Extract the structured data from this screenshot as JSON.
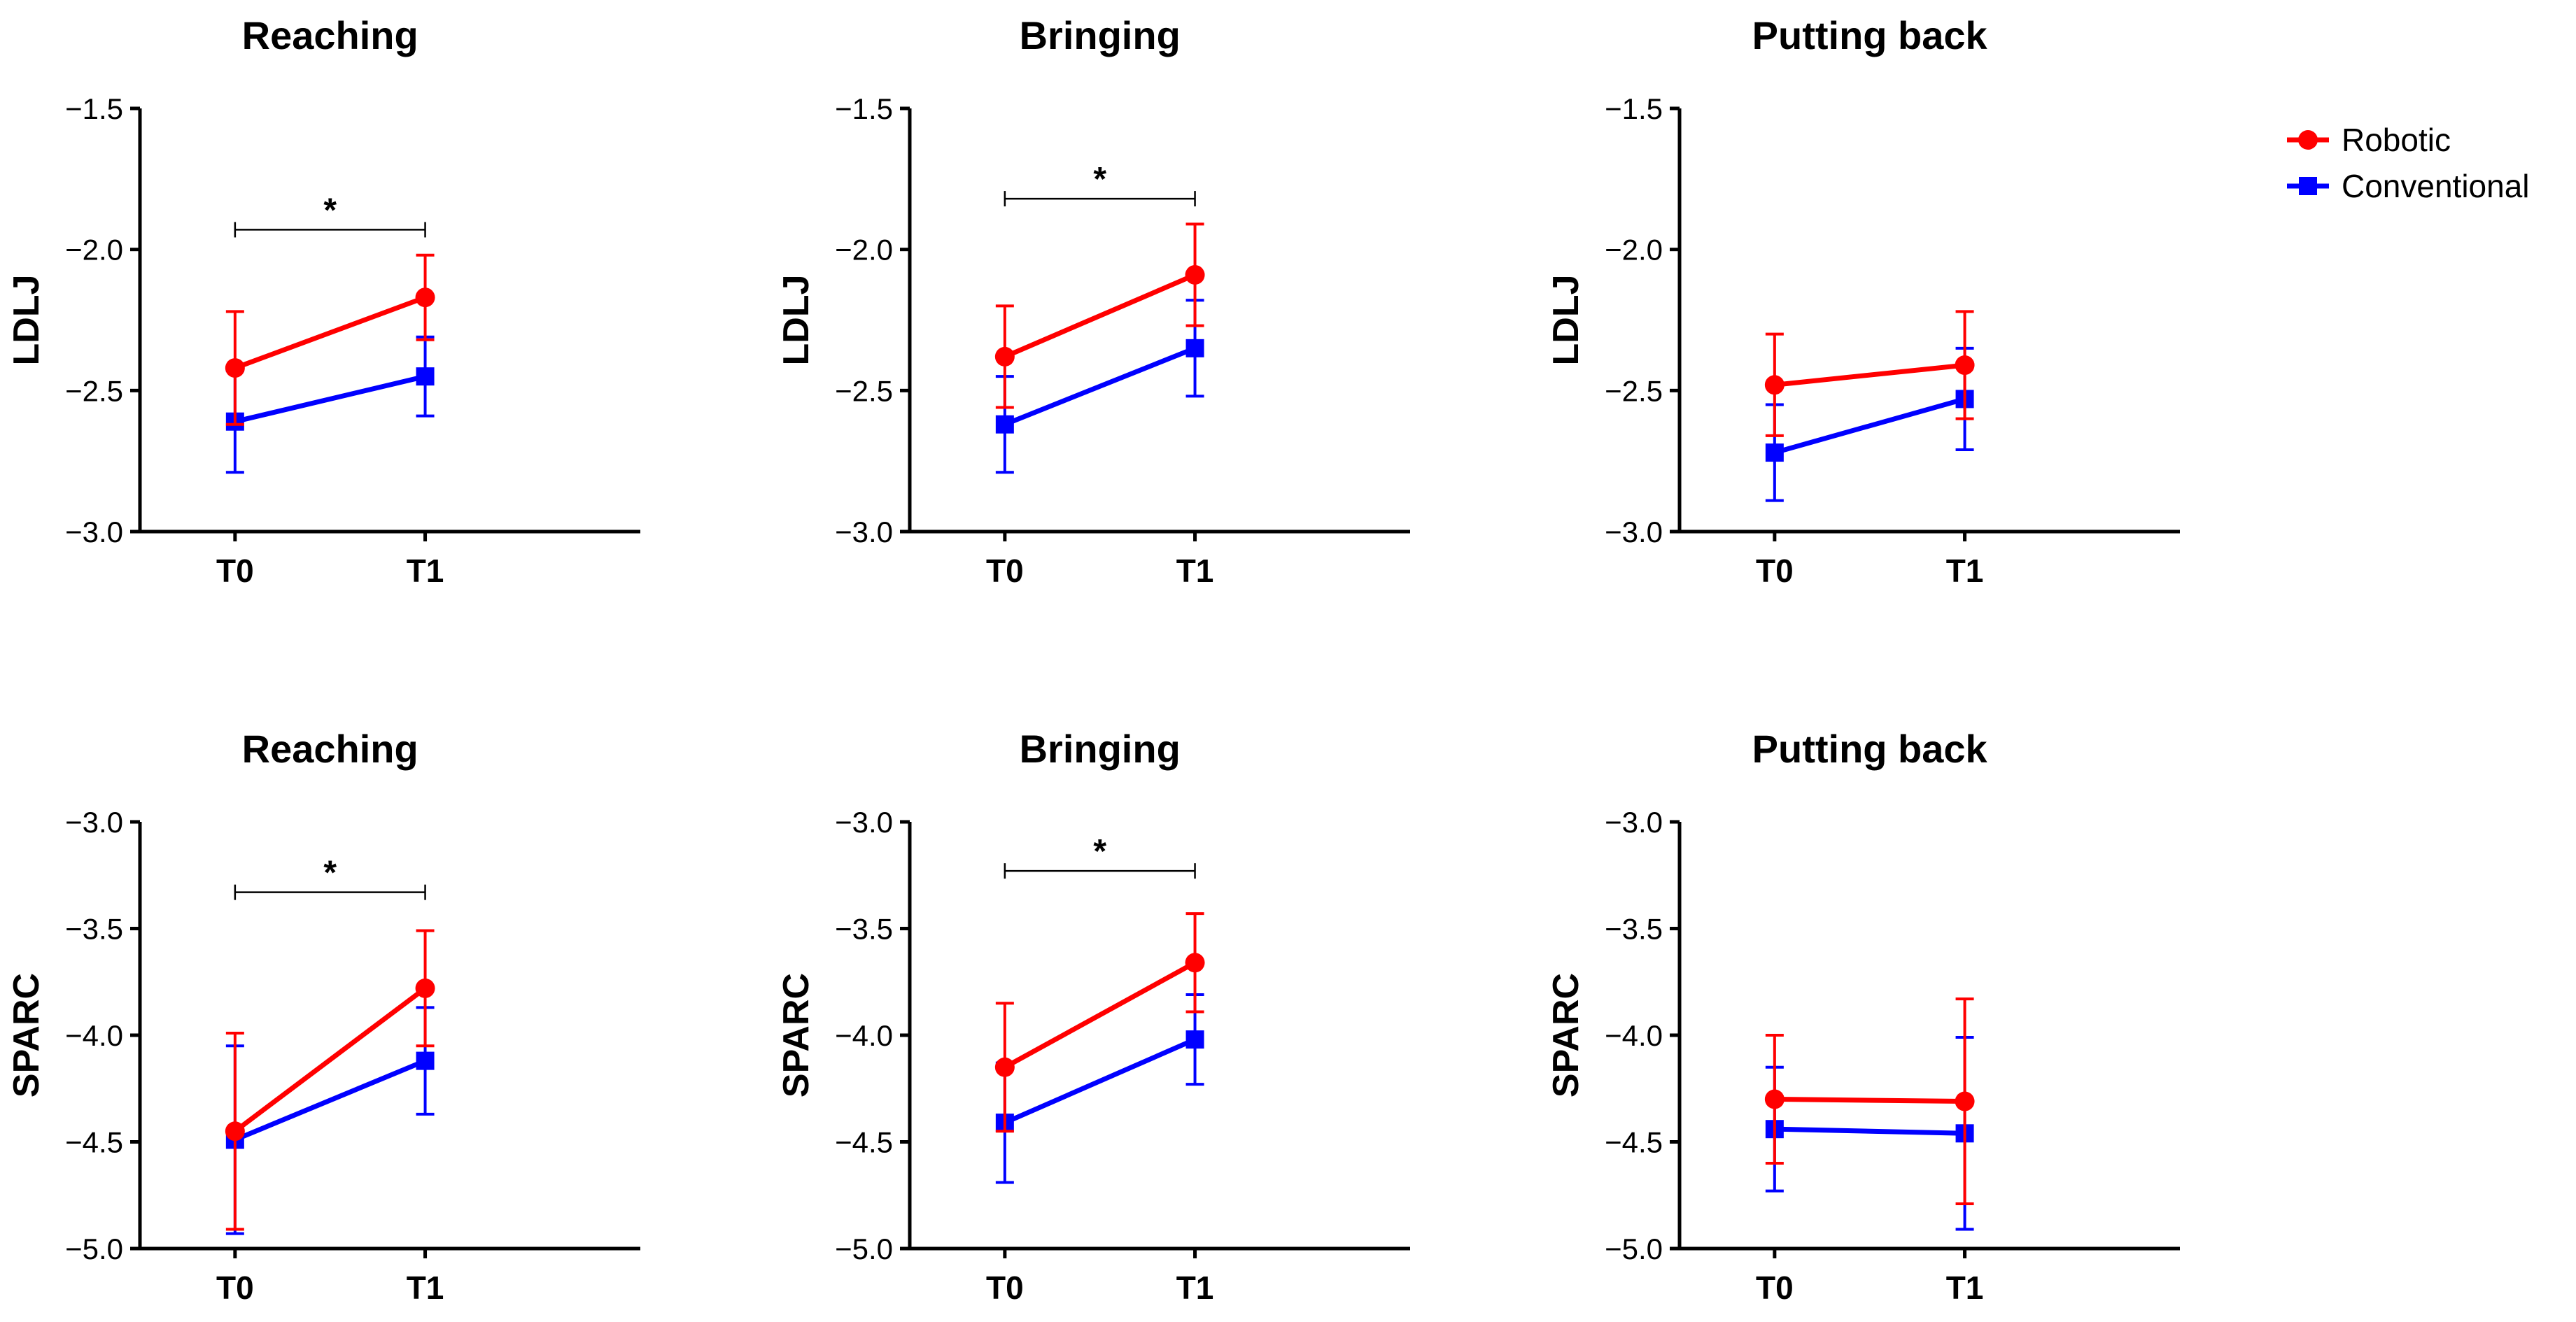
{
  "legend": [
    {
      "name": "Robotic",
      "color": "#ff0000",
      "marker": "circle"
    },
    {
      "name": "Conventional",
      "color": "#0000ff",
      "marker": "square"
    }
  ],
  "chart_data": [
    {
      "type": "line",
      "title": "Reaching",
      "ylabel": "LDLJ",
      "xlabel": "",
      "categories": [
        "T0",
        "T1"
      ],
      "ylim": [
        -3.0,
        -1.5
      ],
      "yticks": [
        -1.5,
        -2.0,
        -2.5,
        -3.0
      ],
      "ytick_labels": [
        "−1.5",
        "−2.0",
        "−2.5",
        "−3.0"
      ],
      "series": [
        {
          "name": "Robotic",
          "values": [
            -2.42,
            -2.17
          ],
          "err": [
            0.2,
            0.15
          ]
        },
        {
          "name": "Conventional",
          "values": [
            -2.61,
            -2.45
          ],
          "err": [
            0.18,
            0.14
          ]
        }
      ],
      "significance": {
        "from": "T0",
        "to": "T1",
        "y": -1.93,
        "label": "*"
      }
    },
    {
      "type": "line",
      "title": "Bringing",
      "ylabel": "LDLJ",
      "xlabel": "",
      "categories": [
        "T0",
        "T1"
      ],
      "ylim": [
        -3.0,
        -1.5
      ],
      "yticks": [
        -1.5,
        -2.0,
        -2.5,
        -3.0
      ],
      "ytick_labels": [
        "−1.5",
        "−2.0",
        "−2.5",
        "−3.0"
      ],
      "series": [
        {
          "name": "Robotic",
          "values": [
            -2.38,
            -2.09
          ],
          "err": [
            0.18,
            0.18
          ]
        },
        {
          "name": "Conventional",
          "values": [
            -2.62,
            -2.35
          ],
          "err": [
            0.17,
            0.17
          ]
        }
      ],
      "significance": {
        "from": "T0",
        "to": "T1",
        "y": -1.82,
        "label": "*"
      }
    },
    {
      "type": "line",
      "title": "Putting back",
      "ylabel": "LDLJ",
      "xlabel": "",
      "categories": [
        "T0",
        "T1"
      ],
      "ylim": [
        -3.0,
        -1.5
      ],
      "yticks": [
        -1.5,
        -2.0,
        -2.5,
        -3.0
      ],
      "ytick_labels": [
        "−1.5",
        "−2.0",
        "−2.5",
        "−3.0"
      ],
      "series": [
        {
          "name": "Robotic",
          "values": [
            -2.48,
            -2.41
          ],
          "err": [
            0.18,
            0.19
          ]
        },
        {
          "name": "Conventional",
          "values": [
            -2.72,
            -2.53
          ],
          "err": [
            0.17,
            0.18
          ]
        }
      ],
      "significance": null
    },
    {
      "type": "line",
      "title": "Reaching",
      "ylabel": "SPARC",
      "xlabel": "",
      "categories": [
        "T0",
        "T1"
      ],
      "ylim": [
        -5.0,
        -3.0
      ],
      "yticks": [
        -3.0,
        -3.5,
        -4.0,
        -4.5,
        -5.0
      ],
      "ytick_labels": [
        "−3.0",
        "−3.5",
        "−4.0",
        "−4.5",
        "−5.0"
      ],
      "series": [
        {
          "name": "Robotic",
          "values": [
            -4.45,
            -3.78
          ],
          "err": [
            0.46,
            0.27
          ]
        },
        {
          "name": "Conventional",
          "values": [
            -4.49,
            -4.12
          ],
          "err": [
            0.44,
            0.25
          ]
        }
      ],
      "significance": {
        "from": "T0",
        "to": "T1",
        "y": -3.33,
        "label": "*"
      }
    },
    {
      "type": "line",
      "title": "Bringing",
      "ylabel": "SPARC",
      "xlabel": "",
      "categories": [
        "T0",
        "T1"
      ],
      "ylim": [
        -5.0,
        -3.0
      ],
      "yticks": [
        -3.0,
        -3.5,
        -4.0,
        -4.5,
        -5.0
      ],
      "ytick_labels": [
        "−3.0",
        "−3.5",
        "−4.0",
        "−4.5",
        "−5.0"
      ],
      "series": [
        {
          "name": "Robotic",
          "values": [
            -4.15,
            -3.66
          ],
          "err": [
            0.3,
            0.23
          ]
        },
        {
          "name": "Conventional",
          "values": [
            -4.41,
            -4.02
          ],
          "err": [
            0.28,
            0.21
          ]
        }
      ],
      "significance": {
        "from": "T0",
        "to": "T1",
        "y": -3.23,
        "label": "*"
      }
    },
    {
      "type": "line",
      "title": "Putting back",
      "ylabel": "SPARC",
      "xlabel": "",
      "categories": [
        "T0",
        "T1"
      ],
      "ylim": [
        -5.0,
        -3.0
      ],
      "yticks": [
        -3.0,
        -3.5,
        -4.0,
        -4.5,
        -5.0
      ],
      "ytick_labels": [
        "−3.0",
        "−3.5",
        "−4.0",
        "−4.5",
        "−5.0"
      ],
      "series": [
        {
          "name": "Robotic",
          "values": [
            -4.3,
            -4.31
          ],
          "err": [
            0.3,
            0.48
          ]
        },
        {
          "name": "Conventional",
          "values": [
            -4.44,
            -4.46
          ],
          "err": [
            0.29,
            0.45
          ]
        }
      ],
      "significance": null
    }
  ]
}
